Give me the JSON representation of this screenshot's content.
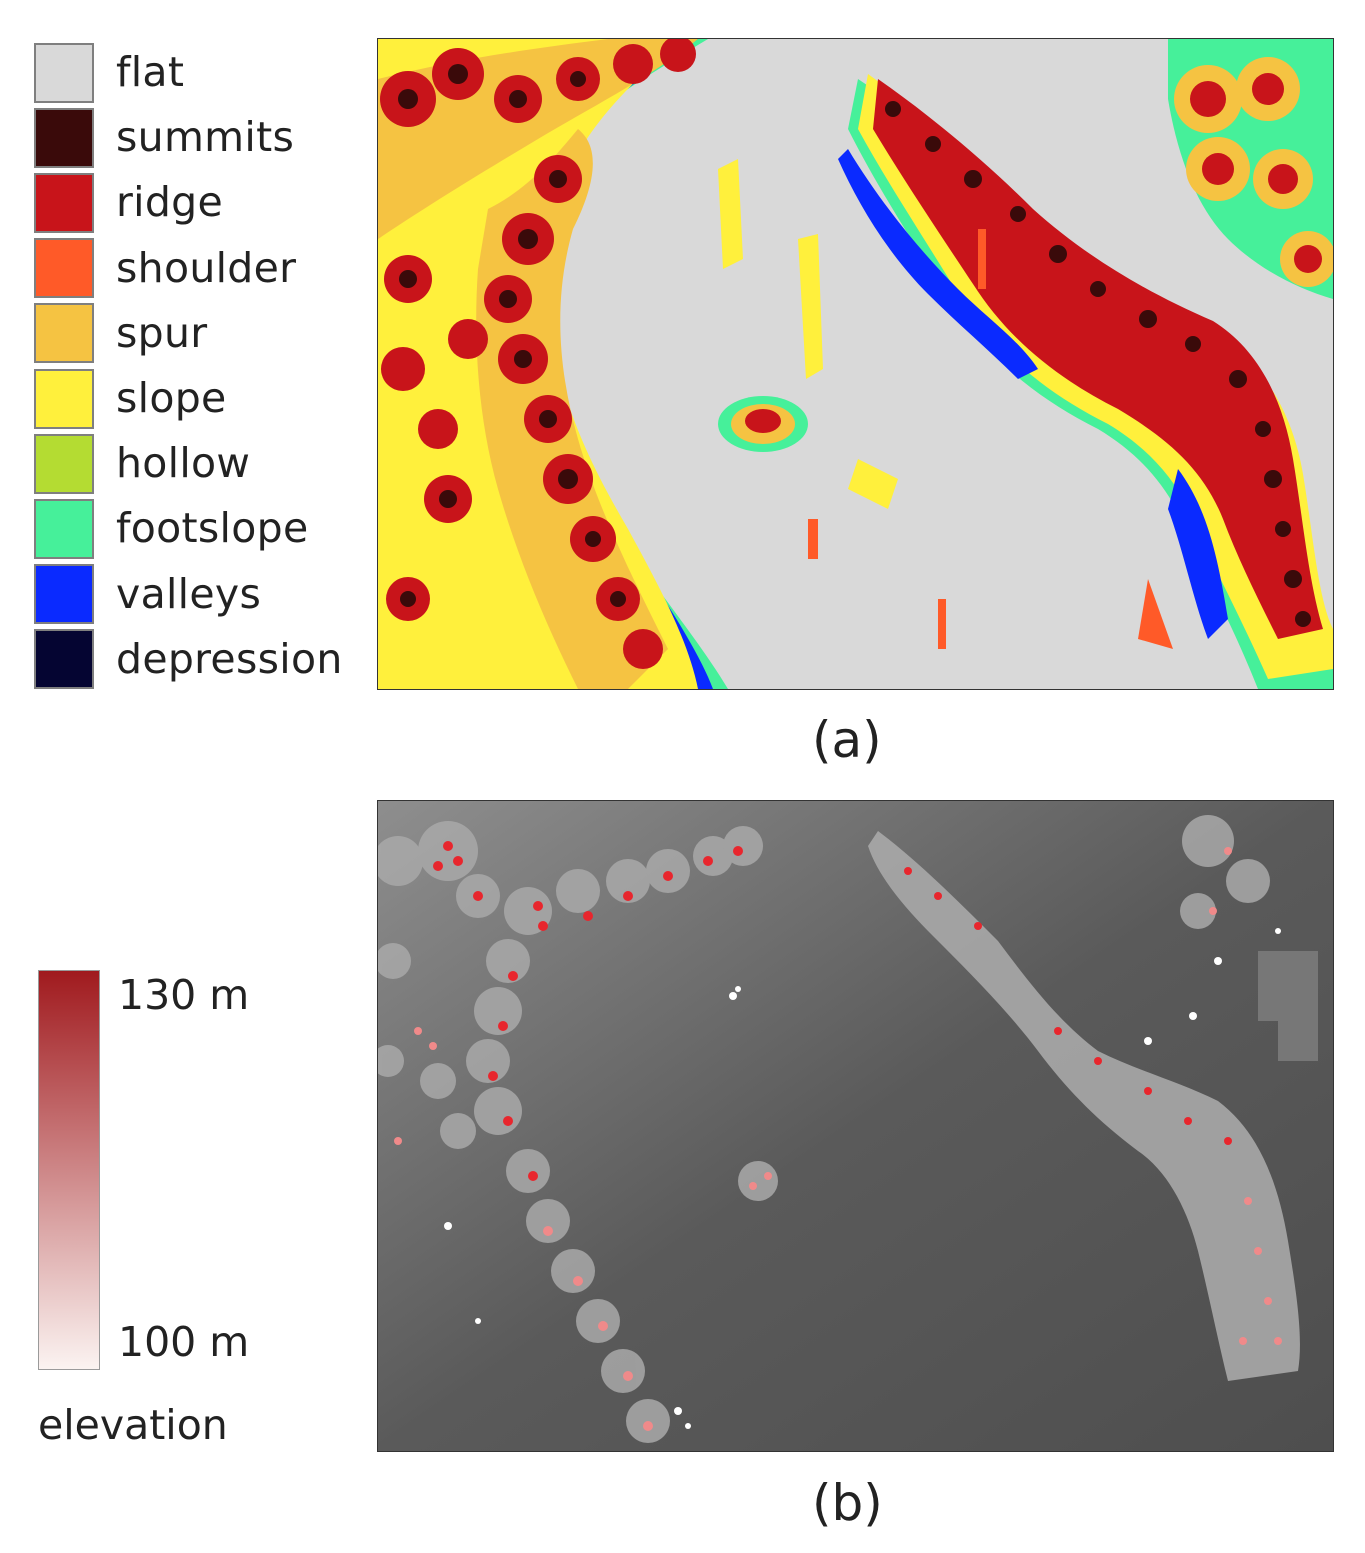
{
  "landform_legend": {
    "items": [
      {
        "label": "flat",
        "color": "#d9d9d9"
      },
      {
        "label": "summits",
        "color": "#3a0a0a"
      },
      {
        "label": "ridge",
        "color": "#c8141a"
      },
      {
        "label": "shoulder",
        "color": "#ff5a28"
      },
      {
        "label": "spur",
        "color": "#f5c342"
      },
      {
        "label": "slope",
        "color": "#fff03c"
      },
      {
        "label": "hollow",
        "color": "#b4dc32"
      },
      {
        "label": "footslope",
        "color": "#46f09a"
      },
      {
        "label": "valleys",
        "color": "#0a2aff"
      },
      {
        "label": "depression",
        "color": "#050532"
      }
    ]
  },
  "elevation_legend": {
    "max_label": "130 m",
    "min_label": "100 m",
    "title": "elevation",
    "color_high": "#a01a1e",
    "color_low": "#fbf3f1"
  },
  "captions": {
    "a": "(a)",
    "b": "(b)"
  }
}
